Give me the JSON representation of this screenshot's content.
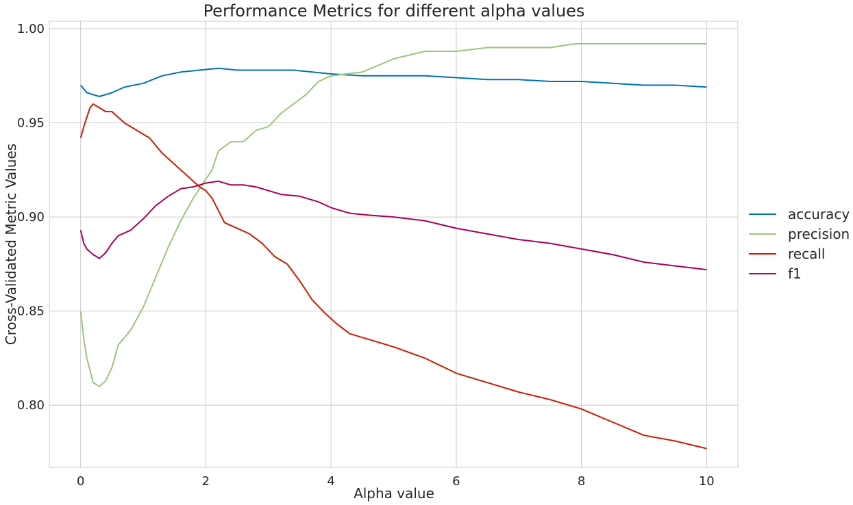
{
  "chart_data": {
    "type": "line",
    "title": "Performance Metrics for different alpha values",
    "xlabel": "Alpha value",
    "ylabel": "Cross-Validated Metric Values",
    "xlim": [
      -0.5,
      10.5
    ],
    "ylim": [
      0.767,
      1.004
    ],
    "xticks": [
      0,
      2,
      4,
      6,
      8,
      10
    ],
    "yticks": [
      0.8,
      0.85,
      0.9,
      0.95,
      1.0
    ],
    "xtick_labels": [
      "0",
      "2",
      "4",
      "6",
      "8",
      "10"
    ],
    "ytick_labels": [
      "0.80",
      "0.85",
      "0.90",
      "0.95",
      "1.00"
    ],
    "grid": true,
    "legend_position": "right",
    "series": [
      {
        "name": "accuracy",
        "color": "#0072B2",
        "x": [
          0,
          0.1,
          0.2,
          0.3,
          0.5,
          0.7,
          1.0,
          1.3,
          1.6,
          1.9,
          2.2,
          2.5,
          2.8,
          3.1,
          3.4,
          3.7,
          4.0,
          4.5,
          5.0,
          5.5,
          6.0,
          6.5,
          7.0,
          7.5,
          8.0,
          8.5,
          9.0,
          9.5,
          10.0
        ],
        "y": [
          0.97,
          0.966,
          0.965,
          0.964,
          0.966,
          0.969,
          0.971,
          0.975,
          0.977,
          0.978,
          0.979,
          0.978,
          0.978,
          0.978,
          0.978,
          0.977,
          0.976,
          0.975,
          0.975,
          0.975,
          0.974,
          0.973,
          0.973,
          0.972,
          0.972,
          0.971,
          0.97,
          0.97,
          0.969
        ]
      },
      {
        "name": "precision",
        "color": "#9BC57A",
        "x": [
          0,
          0.05,
          0.1,
          0.2,
          0.3,
          0.4,
          0.5,
          0.6,
          0.8,
          1.0,
          1.2,
          1.4,
          1.6,
          1.8,
          2.0,
          2.1,
          2.2,
          2.4,
          2.6,
          2.8,
          3.0,
          3.2,
          3.4,
          3.6,
          3.8,
          4.0,
          4.5,
          5.0,
          5.5,
          6.0,
          6.5,
          7.0,
          7.5,
          7.9,
          8.5,
          9.0,
          9.5,
          10.0
        ],
        "y": [
          0.85,
          0.835,
          0.825,
          0.812,
          0.81,
          0.813,
          0.82,
          0.832,
          0.84,
          0.852,
          0.868,
          0.884,
          0.898,
          0.91,
          0.92,
          0.925,
          0.935,
          0.94,
          0.94,
          0.946,
          0.948,
          0.955,
          0.96,
          0.965,
          0.972,
          0.975,
          0.977,
          0.984,
          0.988,
          0.988,
          0.99,
          0.99,
          0.99,
          0.992,
          0.992,
          0.992,
          0.992,
          0.992
        ]
      },
      {
        "name": "recall",
        "color": "#CC1A00",
        "x": [
          0,
          0.05,
          0.1,
          0.15,
          0.2,
          0.3,
          0.4,
          0.5,
          0.7,
          0.9,
          1.1,
          1.3,
          1.5,
          1.7,
          1.9,
          2.0,
          2.1,
          2.3,
          2.5,
          2.7,
          2.9,
          3.1,
          3.3,
          3.5,
          3.7,
          3.9,
          4.1,
          4.3,
          4.6,
          5.0,
          5.5,
          6.0,
          6.5,
          7.0,
          7.5,
          8.0,
          8.5,
          9.0,
          9.5,
          10.0
        ],
        "y": [
          0.942,
          0.948,
          0.953,
          0.958,
          0.96,
          0.958,
          0.956,
          0.956,
          0.95,
          0.946,
          0.942,
          0.934,
          0.928,
          0.922,
          0.916,
          0.914,
          0.91,
          0.897,
          0.894,
          0.891,
          0.886,
          0.879,
          0.875,
          0.866,
          0.856,
          0.849,
          0.843,
          0.838,
          0.835,
          0.831,
          0.825,
          0.817,
          0.812,
          0.807,
          0.803,
          0.798,
          0.791,
          0.784,
          0.781,
          0.777
        ]
      },
      {
        "name": "f1",
        "color": "#A6005A",
        "x": [
          0,
          0.05,
          0.1,
          0.2,
          0.3,
          0.4,
          0.5,
          0.6,
          0.8,
          1.0,
          1.2,
          1.4,
          1.6,
          1.8,
          2.0,
          2.2,
          2.4,
          2.6,
          2.8,
          3.0,
          3.2,
          3.5,
          3.8,
          4.0,
          4.3,
          4.6,
          5.0,
          5.5,
          6.0,
          6.5,
          7.0,
          7.5,
          8.0,
          8.5,
          9.0,
          9.5,
          10.0
        ],
        "y": [
          0.893,
          0.886,
          0.883,
          0.88,
          0.878,
          0.881,
          0.886,
          0.89,
          0.893,
          0.899,
          0.906,
          0.911,
          0.915,
          0.916,
          0.918,
          0.919,
          0.917,
          0.917,
          0.916,
          0.914,
          0.912,
          0.911,
          0.908,
          0.905,
          0.902,
          0.901,
          0.9,
          0.898,
          0.894,
          0.891,
          0.888,
          0.886,
          0.883,
          0.88,
          0.876,
          0.874,
          0.872
        ]
      }
    ]
  }
}
